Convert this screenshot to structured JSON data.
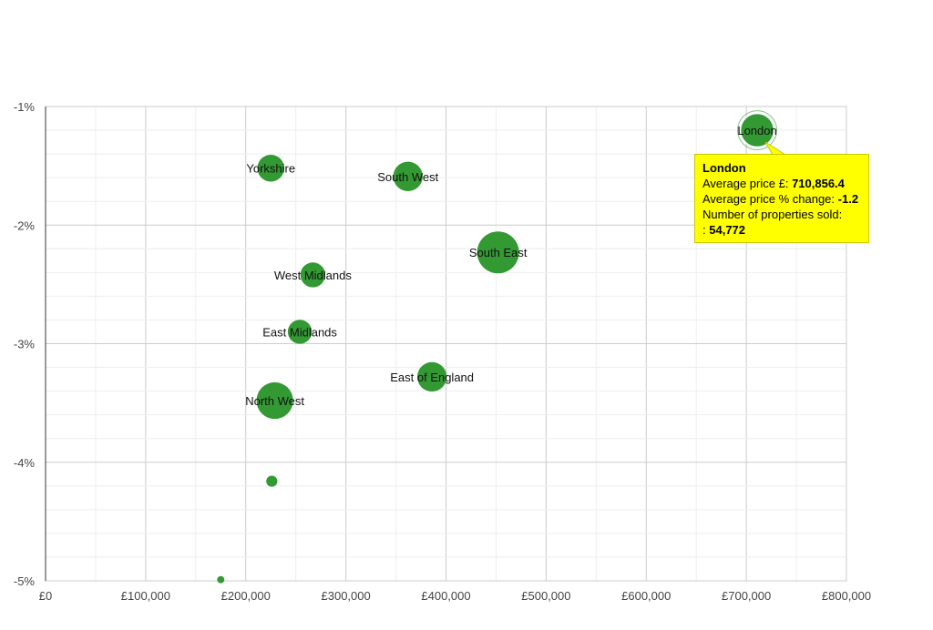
{
  "chart_data": {
    "type": "scatter",
    "title": "",
    "xlabel": "",
    "ylabel": "",
    "xlim": [
      0,
      800000
    ],
    "ylim": [
      -5,
      -1
    ],
    "x_ticks": [
      {
        "value": 0,
        "label": "£0"
      },
      {
        "value": 100000,
        "label": "£100,000"
      },
      {
        "value": 200000,
        "label": "£200,000"
      },
      {
        "value": 300000,
        "label": "£300,000"
      },
      {
        "value": 400000,
        "label": "£400,000"
      },
      {
        "value": 500000,
        "label": "£500,000"
      },
      {
        "value": 600000,
        "label": "£600,000"
      },
      {
        "value": 700000,
        "label": "£700,000"
      },
      {
        "value": 800000,
        "label": "£800,000"
      }
    ],
    "y_ticks": [
      {
        "value": -1,
        "label": "-1%"
      },
      {
        "value": -2,
        "label": "-2%"
      },
      {
        "value": -3,
        "label": "-3%"
      },
      {
        "value": -4,
        "label": "-4%"
      },
      {
        "value": -5,
        "label": "-5%"
      }
    ],
    "grid": true,
    "bubble_color": "#339933",
    "points": [
      {
        "label": "London",
        "x": 710856.4,
        "y": -1.2,
        "size": 54772
      },
      {
        "label": "Yorkshire",
        "x": 225000,
        "y": -1.52,
        "size": 35000
      },
      {
        "label": "South West",
        "x": 362000,
        "y": -1.59,
        "size": 42000
      },
      {
        "label": "South East",
        "x": 452000,
        "y": -2.23,
        "size": 85000
      },
      {
        "label": "West Midlands",
        "x": 267000,
        "y": -2.42,
        "size": 30000
      },
      {
        "label": "East Midlands",
        "x": 254000,
        "y": -2.9,
        "size": 28000
      },
      {
        "label": "East of England",
        "x": 386000,
        "y": -3.28,
        "size": 42000
      },
      {
        "label": "North West",
        "x": 229000,
        "y": -3.48,
        "size": 65000
      },
      {
        "label": "",
        "x": 226000,
        "y": -4.16,
        "size": 6000
      },
      {
        "label": "",
        "x": 175000,
        "y": -4.99,
        "size": 2500
      }
    ]
  },
  "tooltip": {
    "title": "London",
    "price_label": "Average price £:",
    "price_value": "710,856.4",
    "change_label": "Average price % change:",
    "change_value": "-1.2",
    "sold_label": "Number of properties sold:",
    "sold_prefix": ":",
    "sold_value": "54,772"
  }
}
